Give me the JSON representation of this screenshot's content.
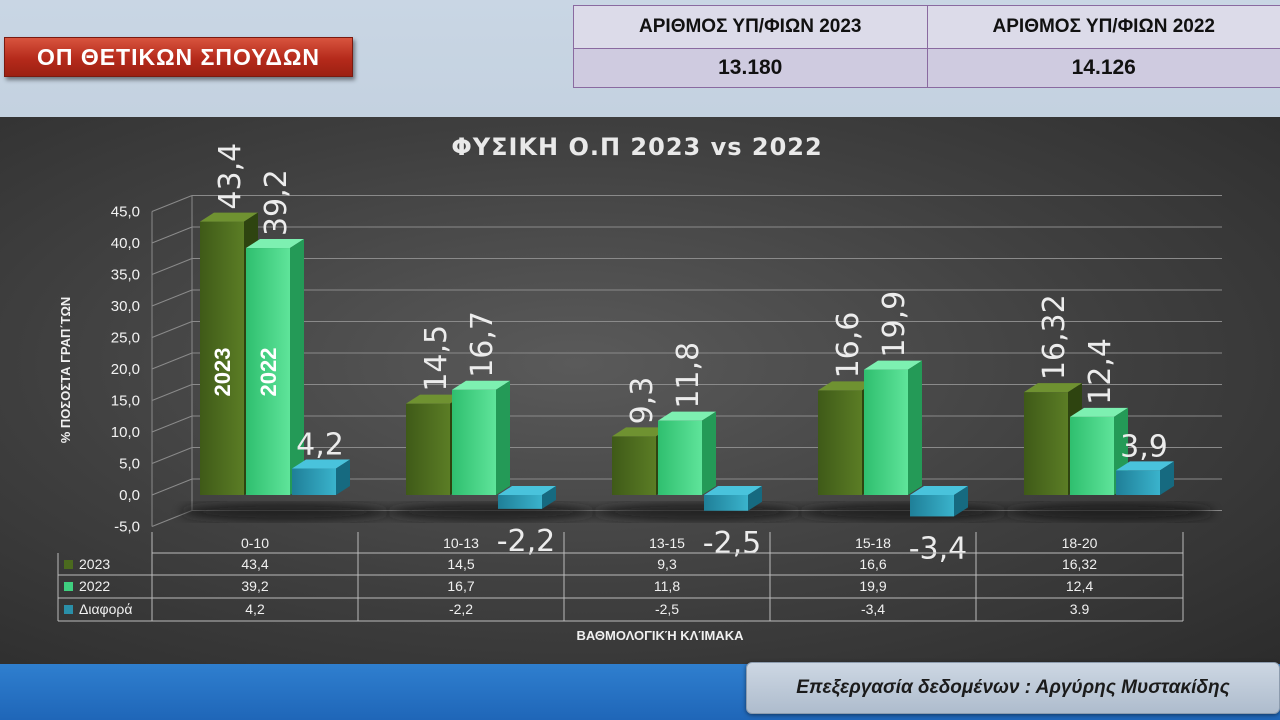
{
  "header": {
    "badge_label": "ΟΠ ΘΕΤΙΚΩΝ ΣΠΟΥΔΩΝ",
    "stats": {
      "col1_label": "ΑΡΙΘΜΟΣ ΥΠ/ΦΙΩΝ 2023",
      "col2_label": "ΑΡΙΘΜΟΣ ΥΠ/ΦΙΩΝ 2022",
      "col1_value": "13.180",
      "col2_value": "14.126"
    }
  },
  "footer": {
    "credit": "Επεξεργασία δεδομένων : Αργύρης Μυστακίδης"
  },
  "chart_data": {
    "type": "bar",
    "title": "ΦΥΣΙΚΗ Ο.Π 2023 vs 2022",
    "xlabel": "ΒΑΘΜΟΛΟΓΙΚΉ ΚΛΊΜΑΚΑ",
    "ylabel": "% ΠΟΣΟΣΤΑ ΓΡΑΠ΄ΤΩΝ",
    "ylim": [
      -5,
      45
    ],
    "yticks": [
      "-5,0",
      "0,0",
      "5,0",
      "10,0",
      "15,0",
      "20,0",
      "25,0",
      "30,0",
      "35,0",
      "40,0",
      "45,0"
    ],
    "categories": [
      "0-10",
      "10-13",
      "13-15",
      "15-18",
      "18-20"
    ],
    "grid": true,
    "legend": "data-table",
    "series": [
      {
        "name": "2023",
        "color": "#4b6a1e",
        "values": [
          43.4,
          14.5,
          9.3,
          16.6,
          16.32
        ],
        "labels": [
          "43,4",
          "14,5",
          "9,3",
          "16,6",
          "16,32"
        ],
        "table": [
          "43,4",
          "14,5",
          "9,3",
          "16,6",
          "16,32"
        ]
      },
      {
        "name": "2022",
        "color": "#3fcf7f",
        "values": [
          39.2,
          16.7,
          11.8,
          19.9,
          12.4
        ],
        "labels": [
          "39,2",
          "16,7",
          "11,8",
          "19,9",
          "12,4"
        ],
        "table": [
          "39,2",
          "16,7",
          "11,8",
          "19,9",
          "12,4"
        ]
      },
      {
        "name": "Διαφορά",
        "color": "#2a8fa8",
        "values": [
          4.2,
          -2.2,
          -2.5,
          -3.4,
          3.9
        ],
        "labels": [
          "4,2",
          "-2,2",
          "-2,5",
          "-3,4",
          "3,9"
        ],
        "table": [
          "4,2",
          "-2,2",
          "-2,5",
          "-3,4",
          "3.9"
        ]
      }
    ],
    "bar_in_labels": [
      "2023",
      "2022"
    ]
  }
}
